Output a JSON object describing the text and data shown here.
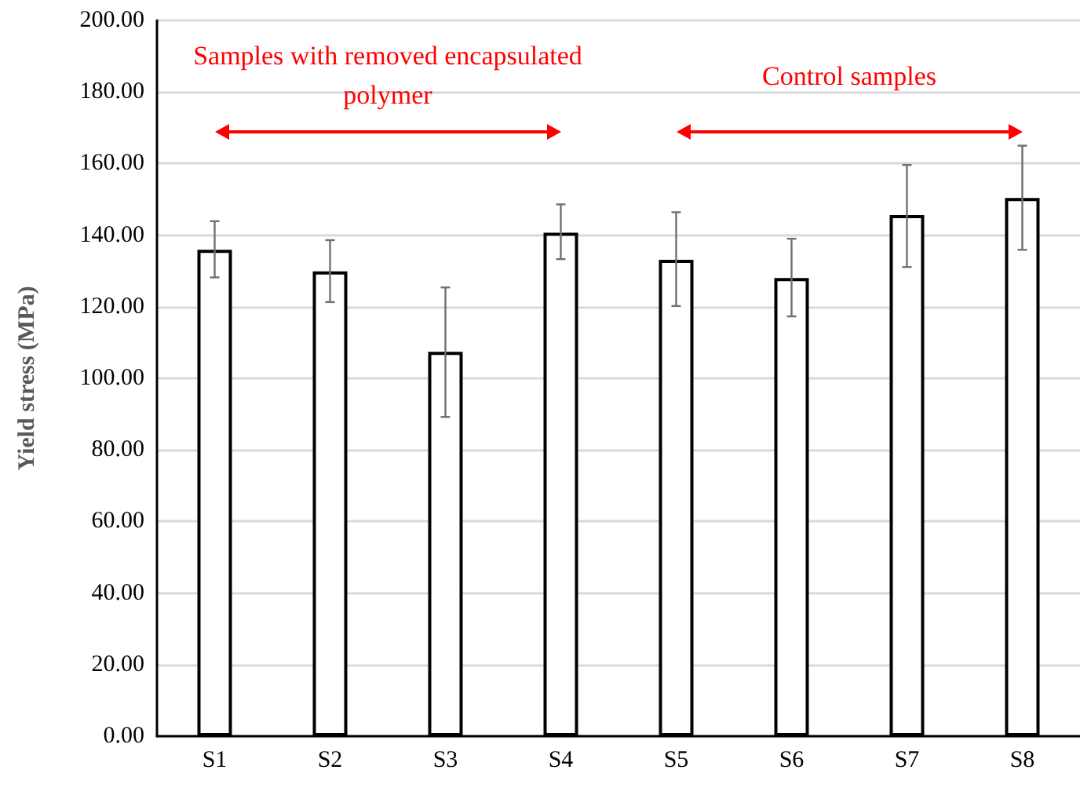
{
  "chart_data": {
    "type": "bar",
    "ylabel": "Yield stress (MPa)",
    "categories": [
      "S1",
      "S2",
      "S3",
      "S4",
      "S5",
      "S6",
      "S7",
      "S8"
    ],
    "values": [
      135.9,
      129.9,
      107.4,
      140.7,
      133.1,
      128.0,
      145.6,
      150.4
    ],
    "errors": [
      [
        128.2,
        143.9
      ],
      [
        121.3,
        138.6
      ],
      [
        89.2,
        125.4
      ],
      [
        133.3,
        148.6
      ],
      [
        120.2,
        146.4
      ],
      [
        117.3,
        139.0
      ],
      [
        131.1,
        159.6
      ],
      [
        135.9,
        165.0
      ]
    ],
    "color": "#ffffff",
    "ylim": [
      0,
      200
    ],
    "yticks": [
      {
        "value": 0,
        "label": "0.00"
      },
      {
        "value": 20,
        "label": "20.00"
      },
      {
        "value": 40,
        "label": "40.00"
      },
      {
        "value": 60,
        "label": "60.00"
      },
      {
        "value": 80,
        "label": "80.00"
      },
      {
        "value": 100,
        "label": "100.00"
      },
      {
        "value": 120,
        "label": "120.00"
      },
      {
        "value": 140,
        "label": "140.00"
      },
      {
        "value": 160,
        "label": "160.00"
      },
      {
        "value": 180,
        "label": "180.00"
      },
      {
        "value": 200,
        "label": "200.00"
      }
    ],
    "grid": "y",
    "annotations": [
      "Samples with removed encapsulated polymer",
      "Control samples"
    ]
  }
}
